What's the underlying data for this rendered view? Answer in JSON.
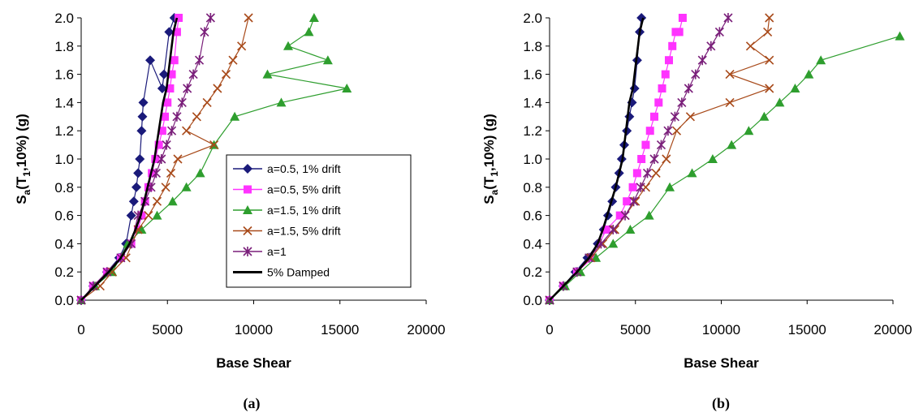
{
  "chart_data": [
    {
      "type": "line",
      "panel_label": "(a)",
      "xlabel": "Base Shear",
      "ylabel_main": "S",
      "ylabel_sub": "a",
      "ylabel_paren": "(T",
      "ylabel_sub2": "1",
      "ylabel_rest": ",10%) (g)",
      "xlim": [
        0,
        20000
      ],
      "ylim": [
        0,
        2.0
      ],
      "xticks": [
        0,
        5000,
        10000,
        15000,
        20000
      ],
      "xtick_labels": [
        "0",
        "5000",
        "10000",
        "15000",
        "20000"
      ],
      "yticks": [
        0,
        0.2,
        0.4,
        0.6,
        0.8,
        1.0,
        1.2,
        1.4,
        1.6,
        1.8,
        2.0
      ],
      "ytick_labels": [
        "0.0",
        "0.2",
        "0.4",
        "0.6",
        "0.8",
        "1.0",
        "1.2",
        "1.4",
        "1.6",
        "1.8",
        "2.0"
      ],
      "legend_position": "right-center",
      "grid": false,
      "series": [
        {
          "name": "a=0.5, 1% drift",
          "color": "#1a1a7a",
          "marker": "diamond",
          "x": [
            0,
            700,
            1500,
            2200,
            2600,
            2900,
            3050,
            3200,
            3300,
            3400,
            3500,
            3550,
            3600,
            4000,
            4700,
            4800,
            5100,
            5400
          ],
          "y": [
            0,
            0.1,
            0.2,
            0.3,
            0.4,
            0.6,
            0.7,
            0.8,
            0.9,
            1.0,
            1.2,
            1.3,
            1.4,
            1.7,
            1.5,
            1.6,
            1.9,
            2.0
          ]
        },
        {
          "name": "a=0.5, 5% drift",
          "color": "#ff33ff",
          "marker": "square",
          "x": [
            0,
            700,
            1500,
            2300,
            2900,
            3300,
            3500,
            3700,
            3900,
            4100,
            4300,
            4500,
            4700,
            4850,
            5000,
            5150,
            5250,
            5400,
            5550,
            5650
          ],
          "y": [
            0,
            0.1,
            0.2,
            0.3,
            0.4,
            0.5,
            0.6,
            0.7,
            0.8,
            0.9,
            1.0,
            1.1,
            1.2,
            1.3,
            1.4,
            1.5,
            1.6,
            1.7,
            1.9,
            2.0
          ]
        },
        {
          "name": "a=1.5, 1% drift",
          "color": "#2e9e2e",
          "marker": "triangle",
          "x": [
            0,
            800,
            1800,
            2700,
            3500,
            4400,
            5300,
            6100,
            6900,
            7700,
            8900,
            11600,
            15400,
            10800,
            14300,
            12000,
            13200,
            13500
          ],
          "y": [
            0,
            0.1,
            0.2,
            0.4,
            0.5,
            0.6,
            0.7,
            0.8,
            0.9,
            1.1,
            1.3,
            1.4,
            1.5,
            1.6,
            1.7,
            1.8,
            1.9,
            2.0
          ]
        },
        {
          "name": "a=1.5, 5% drift",
          "color": "#a84a1a",
          "marker": "x",
          "x": [
            0,
            1100,
            1800,
            2600,
            3300,
            3900,
            4400,
            4900,
            5200,
            5600,
            7700,
            6100,
            6700,
            7300,
            7900,
            8400,
            8800,
            9300,
            9700
          ],
          "y": [
            0,
            0.1,
            0.2,
            0.3,
            0.5,
            0.6,
            0.7,
            0.8,
            0.9,
            1.0,
            1.1,
            1.2,
            1.3,
            1.4,
            1.5,
            1.6,
            1.7,
            1.8,
            2.0
          ]
        },
        {
          "name": "a=1",
          "color": "#7a1f7a",
          "marker": "star",
          "x": [
            0,
            700,
            1500,
            2300,
            2900,
            3300,
            3700,
            4050,
            4350,
            4650,
            4950,
            5250,
            5550,
            5850,
            6150,
            6500,
            6850,
            7150,
            7500
          ],
          "y": [
            0,
            0.1,
            0.2,
            0.3,
            0.4,
            0.6,
            0.7,
            0.8,
            0.9,
            1.0,
            1.1,
            1.2,
            1.3,
            1.4,
            1.5,
            1.6,
            1.7,
            1.9,
            2.0
          ]
        },
        {
          "name": "5% Damped",
          "color": "#000000",
          "marker": "none",
          "x": [
            0,
            800,
            1600,
            2300,
            2800,
            3150,
            3450,
            3650,
            3850,
            4050,
            4250,
            4500,
            4750,
            4950,
            5150,
            5350,
            5550
          ],
          "y": [
            0,
            0.1,
            0.2,
            0.3,
            0.4,
            0.5,
            0.6,
            0.7,
            0.8,
            0.9,
            1.0,
            1.2,
            1.4,
            1.5,
            1.7,
            1.9,
            2.0
          ]
        }
      ]
    },
    {
      "type": "line",
      "panel_label": "(b)",
      "xlabel": "Base Shear",
      "ylabel_main": "S",
      "ylabel_sub": "a",
      "ylabel_paren": "(T",
      "ylabel_sub2": "1",
      "ylabel_rest": ",10%) (g)",
      "xlim": [
        0,
        20000
      ],
      "ylim": [
        0,
        2.0
      ],
      "xticks": [
        0,
        5000,
        10000,
        15000,
        20000
      ],
      "xtick_labels": [
        "0",
        "5000",
        "10000",
        "15000",
        "20000"
      ],
      "yticks": [
        0,
        0.2,
        0.4,
        0.6,
        0.8,
        1.0,
        1.2,
        1.4,
        1.6,
        1.8,
        2.0
      ],
      "ytick_labels": [
        "0.0",
        "0.2",
        "0.4",
        "0.6",
        "0.8",
        "1.0",
        "1.2",
        "1.4",
        "1.6",
        "1.8",
        "2.0"
      ],
      "grid": false,
      "series": [
        {
          "name": "a=0.5, 1% drift",
          "color": "#1a1a7a",
          "marker": "diamond",
          "x": [
            0,
            800,
            1500,
            2200,
            2800,
            3150,
            3400,
            3650,
            3850,
            4050,
            4200,
            4350,
            4500,
            4650,
            4800,
            4950,
            5100,
            5250,
            5350
          ],
          "y": [
            0,
            0.1,
            0.2,
            0.3,
            0.4,
            0.5,
            0.6,
            0.7,
            0.8,
            0.9,
            1.0,
            1.1,
            1.2,
            1.3,
            1.4,
            1.5,
            1.7,
            1.9,
            2.0
          ]
        },
        {
          "name": "a=0.5, 5% drift",
          "color": "#ff33ff",
          "marker": "square",
          "x": [
            0,
            800,
            1600,
            2500,
            3300,
            4100,
            4500,
            4850,
            5100,
            5350,
            5600,
            5850,
            6100,
            6350,
            6550,
            6750,
            6950,
            7150,
            7350,
            7550,
            7750
          ],
          "y": [
            0,
            0.1,
            0.2,
            0.3,
            0.5,
            0.6,
            0.7,
            0.8,
            0.9,
            1.0,
            1.1,
            1.2,
            1.3,
            1.4,
            1.5,
            1.6,
            1.7,
            1.8,
            1.9,
            1.9,
            2.0
          ]
        },
        {
          "name": "a=1.5, 1% drift",
          "color": "#2e9e2e",
          "marker": "triangle",
          "x": [
            0,
            900,
            1800,
            2700,
            3700,
            4700,
            5800,
            7000,
            8300,
            9500,
            10600,
            11600,
            12500,
            13400,
            14300,
            15100,
            15800,
            20400
          ],
          "y": [
            0,
            0.1,
            0.2,
            0.3,
            0.4,
            0.5,
            0.6,
            0.8,
            0.9,
            1.0,
            1.1,
            1.2,
            1.3,
            1.4,
            1.5,
            1.6,
            1.7,
            1.87
          ]
        },
        {
          "name": "a=1.5, 5% drift",
          "color": "#a84a1a",
          "marker": "x",
          "x": [
            0,
            800,
            1600,
            2400,
            3100,
            3800,
            4400,
            5000,
            5600,
            6200,
            6800,
            7400,
            8200,
            10500,
            12800,
            10500,
            12800,
            11700,
            12700,
            12800
          ],
          "y": [
            0,
            0.1,
            0.2,
            0.3,
            0.4,
            0.5,
            0.6,
            0.7,
            0.8,
            0.9,
            1.0,
            1.2,
            1.3,
            1.4,
            1.5,
            1.6,
            1.7,
            1.8,
            1.9,
            2.0
          ]
        },
        {
          "name": "a=1",
          "color": "#7a1f7a",
          "marker": "star",
          "x": [
            0,
            800,
            1600,
            2300,
            3000,
            3700,
            4400,
            4900,
            5300,
            5700,
            6100,
            6500,
            6900,
            7300,
            7700,
            8100,
            8500,
            8900,
            9400,
            9900,
            10400
          ],
          "y": [
            0,
            0.1,
            0.2,
            0.3,
            0.4,
            0.5,
            0.6,
            0.7,
            0.8,
            0.9,
            1.0,
            1.1,
            1.2,
            1.3,
            1.4,
            1.5,
            1.6,
            1.7,
            1.8,
            1.9,
            2.0
          ]
        },
        {
          "name": "5% Damped",
          "color": "#000000",
          "marker": "none",
          "x": [
            0,
            800,
            1600,
            2300,
            2800,
            3100,
            3350,
            3600,
            3850,
            4050,
            4250,
            4450,
            4650,
            4850,
            5050,
            5250,
            5450
          ],
          "y": [
            0,
            0.1,
            0.2,
            0.3,
            0.4,
            0.5,
            0.6,
            0.7,
            0.8,
            0.9,
            1.0,
            1.2,
            1.4,
            1.5,
            1.7,
            1.9,
            2.0
          ]
        }
      ]
    }
  ]
}
